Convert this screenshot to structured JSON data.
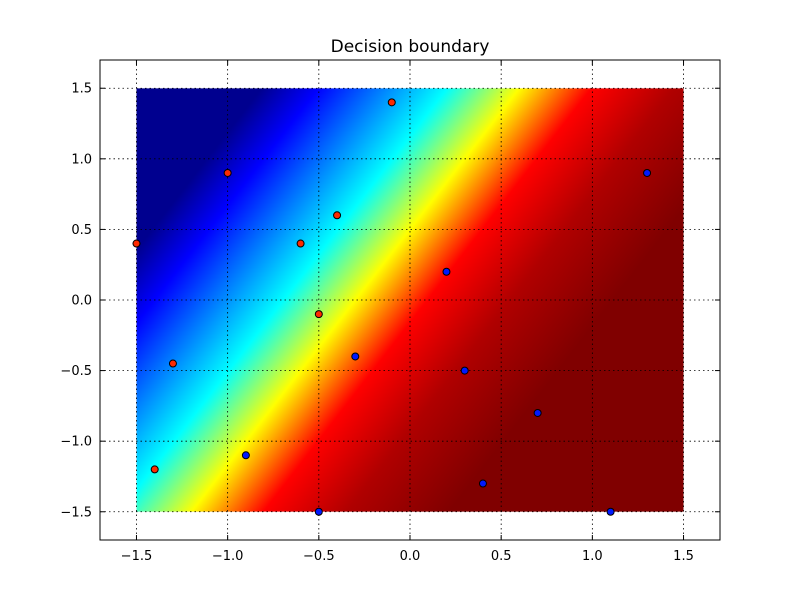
{
  "chart_data": {
    "type": "heatmap",
    "title": "Decision boundary",
    "xlabel": "",
    "ylabel": "",
    "xlim": [
      -1.7,
      1.7
    ],
    "ylim": [
      -1.7,
      1.7
    ],
    "heatmap_extent": {
      "x": [
        -1.5,
        1.5
      ],
      "y": [
        -1.5,
        1.5
      ]
    },
    "colormap": "jet",
    "grid": true,
    "boundary": {
      "description_line": "y = x + 0.5",
      "slope": 1,
      "intercept": 0.5
    },
    "x_ticks": [
      -1.5,
      -1.0,
      -0.5,
      0.0,
      0.5,
      1.0,
      1.5
    ],
    "x_tick_labels": [
      "−1.5",
      "−1.0",
      "−0.5",
      "0.0",
      "0.5",
      "1.0",
      "1.5"
    ],
    "y_ticks": [
      1.5,
      1.0,
      0.5,
      0.0,
      -0.5,
      -1.0,
      -1.5
    ],
    "y_tick_labels": [
      "1.5",
      "1.0",
      "0.5",
      "0.0",
      "−0.5",
      "−1.0",
      "−1.5"
    ],
    "series": [
      {
        "color": "#ff2a00",
        "points": [
          [
            -1.5,
            0.4
          ],
          [
            -1.0,
            0.9
          ],
          [
            -0.1,
            1.4
          ],
          [
            -0.4,
            0.6
          ],
          [
            -0.6,
            0.4
          ],
          [
            -0.5,
            -0.1
          ],
          [
            -1.3,
            -0.45
          ],
          [
            -1.4,
            -1.2
          ]
        ]
      },
      {
        "color": "#0019ff",
        "points": [
          [
            0.2,
            0.2
          ],
          [
            1.3,
            0.9
          ],
          [
            -0.3,
            -0.4
          ],
          [
            0.3,
            -0.5
          ],
          [
            0.7,
            -0.8
          ],
          [
            -0.9,
            -1.1
          ],
          [
            0.4,
            -1.3
          ],
          [
            -0.5,
            -1.5
          ],
          [
            1.1,
            -1.5
          ]
        ]
      }
    ]
  }
}
